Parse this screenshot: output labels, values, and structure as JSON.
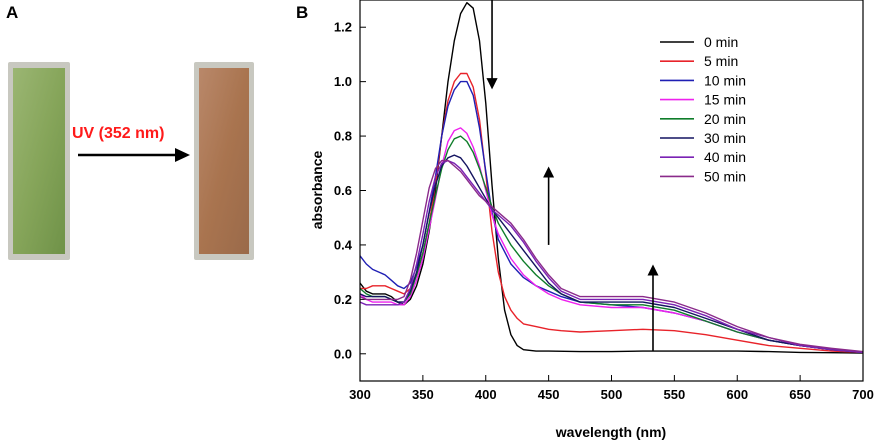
{
  "panel_a": {
    "letter": "A",
    "arrow_label": "UV (352 nm)",
    "before_color": "#86a55a",
    "after_color": "#a9744f"
  },
  "panel_b": {
    "letter": "B"
  },
  "colors": {
    "uv_label": "#ff1a1a"
  },
  "chart_data": {
    "type": "line",
    "title": "",
    "xlabel": "wavelength (nm)",
    "ylabel": "absorbance",
    "xlim": [
      300,
      700
    ],
    "ylim": [
      -0.1,
      1.3
    ],
    "xticks": [
      300,
      350,
      400,
      450,
      500,
      550,
      600,
      650,
      700
    ],
    "yticks": [
      0.0,
      0.2,
      0.4,
      0.6,
      0.8,
      1.0,
      1.2
    ],
    "ytick_labels": [
      "0.0",
      "0.2",
      "0.4",
      "0.6",
      "0.8",
      "1.0",
      "1.2"
    ],
    "legend_position": "top-right",
    "series": [
      {
        "name": "0 min",
        "color": "#000000",
        "x": [
          300,
          305,
          310,
          315,
          320,
          325,
          330,
          335,
          340,
          345,
          350,
          355,
          360,
          365,
          370,
          375,
          380,
          385,
          390,
          395,
          400,
          405,
          410,
          415,
          420,
          425,
          430,
          440,
          450,
          475,
          500,
          525,
          550,
          575,
          600,
          625,
          650,
          675,
          700
        ],
        "y": [
          0.26,
          0.23,
          0.22,
          0.22,
          0.22,
          0.21,
          0.19,
          0.18,
          0.2,
          0.25,
          0.33,
          0.45,
          0.6,
          0.8,
          1.0,
          1.15,
          1.25,
          1.29,
          1.27,
          1.15,
          0.92,
          0.62,
          0.35,
          0.16,
          0.07,
          0.03,
          0.015,
          0.01,
          0.01,
          0.008,
          0.008,
          0.01,
          0.01,
          0.01,
          0.01,
          0.008,
          0.005,
          0.004,
          0.003
        ]
      },
      {
        "name": "5 min",
        "color": "#e8232a",
        "x": [
          300,
          305,
          310,
          315,
          320,
          325,
          330,
          335,
          340,
          345,
          350,
          355,
          360,
          365,
          370,
          375,
          380,
          385,
          390,
          395,
          400,
          405,
          410,
          415,
          420,
          425,
          430,
          440,
          450,
          460,
          475,
          500,
          525,
          550,
          575,
          600,
          625,
          650,
          675,
          700
        ],
        "y": [
          0.24,
          0.24,
          0.25,
          0.25,
          0.25,
          0.24,
          0.23,
          0.22,
          0.24,
          0.29,
          0.37,
          0.48,
          0.62,
          0.8,
          0.93,
          1.0,
          1.03,
          1.03,
          0.98,
          0.86,
          0.66,
          0.45,
          0.3,
          0.21,
          0.16,
          0.13,
          0.11,
          0.1,
          0.09,
          0.085,
          0.08,
          0.085,
          0.09,
          0.085,
          0.07,
          0.05,
          0.03,
          0.02,
          0.01,
          0.005
        ]
      },
      {
        "name": "10 min",
        "color": "#1f1fb4",
        "x": [
          300,
          305,
          310,
          315,
          320,
          325,
          330,
          335,
          340,
          345,
          350,
          355,
          360,
          365,
          370,
          375,
          380,
          385,
          390,
          395,
          400,
          405,
          410,
          420,
          430,
          440,
          450,
          460,
          475,
          500,
          525,
          550,
          575,
          600,
          625,
          650,
          675,
          700
        ],
        "y": [
          0.36,
          0.33,
          0.31,
          0.3,
          0.29,
          0.27,
          0.25,
          0.24,
          0.26,
          0.32,
          0.4,
          0.52,
          0.65,
          0.8,
          0.91,
          0.97,
          1.0,
          1.0,
          0.95,
          0.83,
          0.67,
          0.52,
          0.42,
          0.33,
          0.28,
          0.25,
          0.23,
          0.21,
          0.19,
          0.18,
          0.17,
          0.15,
          0.12,
          0.08,
          0.05,
          0.03,
          0.015,
          0.005
        ]
      },
      {
        "name": "15 min",
        "color": "#ee22ee",
        "x": [
          300,
          305,
          310,
          315,
          320,
          325,
          330,
          335,
          340,
          345,
          350,
          355,
          360,
          365,
          370,
          375,
          380,
          385,
          390,
          395,
          400,
          405,
          410,
          420,
          430,
          440,
          450,
          460,
          475,
          500,
          525,
          550,
          575,
          600,
          625,
          650,
          675,
          700
        ],
        "y": [
          0.22,
          0.2,
          0.19,
          0.19,
          0.19,
          0.19,
          0.18,
          0.18,
          0.21,
          0.27,
          0.35,
          0.46,
          0.57,
          0.69,
          0.78,
          0.82,
          0.83,
          0.81,
          0.76,
          0.69,
          0.6,
          0.51,
          0.44,
          0.35,
          0.29,
          0.25,
          0.22,
          0.2,
          0.18,
          0.17,
          0.17,
          0.15,
          0.12,
          0.08,
          0.05,
          0.03,
          0.015,
          0.005
        ]
      },
      {
        "name": "20 min",
        "color": "#0f7d2a",
        "x": [
          300,
          305,
          310,
          315,
          320,
          325,
          330,
          335,
          340,
          345,
          350,
          355,
          360,
          365,
          370,
          375,
          380,
          385,
          390,
          395,
          400,
          405,
          410,
          420,
          430,
          440,
          450,
          460,
          475,
          500,
          525,
          550,
          575,
          600,
          625,
          650,
          675,
          700
        ],
        "y": [
          0.24,
          0.22,
          0.21,
          0.21,
          0.21,
          0.2,
          0.19,
          0.19,
          0.22,
          0.29,
          0.37,
          0.48,
          0.58,
          0.68,
          0.75,
          0.79,
          0.8,
          0.78,
          0.74,
          0.68,
          0.61,
          0.54,
          0.48,
          0.4,
          0.34,
          0.29,
          0.25,
          0.22,
          0.19,
          0.18,
          0.18,
          0.16,
          0.12,
          0.08,
          0.05,
          0.03,
          0.015,
          0.005
        ]
      },
      {
        "name": "30 min",
        "color": "#141460",
        "x": [
          300,
          305,
          310,
          315,
          320,
          325,
          330,
          335,
          340,
          345,
          350,
          355,
          360,
          365,
          370,
          375,
          380,
          385,
          390,
          395,
          400,
          405,
          410,
          420,
          430,
          440,
          450,
          460,
          475,
          500,
          525,
          550,
          575,
          600,
          625,
          650,
          675,
          700
        ],
        "y": [
          0.22,
          0.21,
          0.21,
          0.21,
          0.21,
          0.2,
          0.19,
          0.19,
          0.23,
          0.3,
          0.4,
          0.52,
          0.62,
          0.69,
          0.72,
          0.73,
          0.72,
          0.69,
          0.65,
          0.61,
          0.57,
          0.53,
          0.5,
          0.44,
          0.38,
          0.32,
          0.26,
          0.22,
          0.19,
          0.19,
          0.19,
          0.17,
          0.13,
          0.09,
          0.05,
          0.03,
          0.015,
          0.005
        ]
      },
      {
        "name": "40 min",
        "color": "#7a22b4",
        "x": [
          300,
          305,
          310,
          315,
          320,
          325,
          330,
          335,
          340,
          345,
          350,
          355,
          360,
          365,
          370,
          375,
          380,
          385,
          390,
          395,
          400,
          405,
          410,
          420,
          430,
          440,
          450,
          460,
          475,
          500,
          525,
          550,
          575,
          600,
          625,
          650,
          675,
          700
        ],
        "y": [
          0.19,
          0.18,
          0.18,
          0.18,
          0.18,
          0.18,
          0.18,
          0.19,
          0.24,
          0.33,
          0.44,
          0.56,
          0.65,
          0.7,
          0.71,
          0.7,
          0.68,
          0.65,
          0.62,
          0.59,
          0.56,
          0.53,
          0.51,
          0.47,
          0.41,
          0.34,
          0.28,
          0.23,
          0.2,
          0.2,
          0.2,
          0.18,
          0.14,
          0.09,
          0.06,
          0.03,
          0.015,
          0.005
        ]
      },
      {
        "name": "50 min",
        "color": "#8a2a8a",
        "x": [
          300,
          305,
          310,
          315,
          320,
          325,
          330,
          335,
          340,
          345,
          350,
          355,
          360,
          365,
          370,
          375,
          380,
          385,
          390,
          395,
          400,
          405,
          410,
          420,
          430,
          440,
          450,
          460,
          475,
          500,
          525,
          550,
          575,
          600,
          625,
          650,
          675,
          700
        ],
        "y": [
          0.21,
          0.2,
          0.2,
          0.2,
          0.2,
          0.2,
          0.2,
          0.21,
          0.27,
          0.37,
          0.49,
          0.61,
          0.68,
          0.71,
          0.71,
          0.69,
          0.67,
          0.64,
          0.61,
          0.58,
          0.56,
          0.54,
          0.52,
          0.48,
          0.42,
          0.35,
          0.29,
          0.24,
          0.21,
          0.21,
          0.21,
          0.19,
          0.15,
          0.1,
          0.06,
          0.035,
          0.02,
          0.008
        ]
      }
    ],
    "annotations": [
      {
        "type": "arrow",
        "direction": "down",
        "x": 405,
        "y_from": 1.33,
        "y_to": 0.98
      },
      {
        "type": "arrow",
        "direction": "up",
        "x": 450,
        "y_from": 0.4,
        "y_to": 0.68
      },
      {
        "type": "arrow",
        "direction": "up",
        "x": 533,
        "y_from": 0.01,
        "y_to": 0.32
      }
    ]
  }
}
